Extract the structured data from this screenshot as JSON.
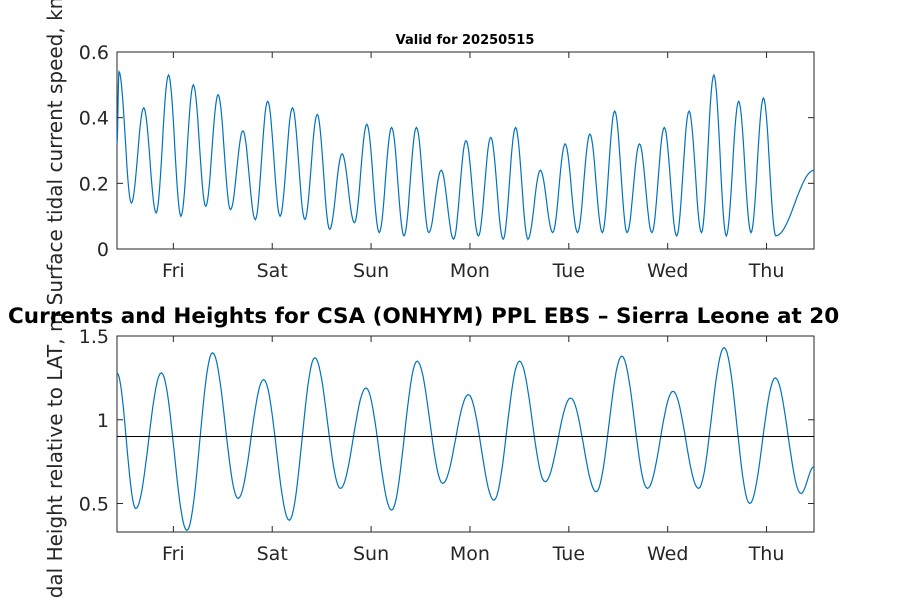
{
  "chart_data": [
    {
      "type": "line",
      "title": "Valid for 20250515",
      "ylabel": "Surface tidal current speed, kn",
      "xlabel": "",
      "ylim": [
        0,
        0.6
      ],
      "yticks": [
        0,
        0.2,
        0.4,
        0.6
      ],
      "ytick_labels": [
        "0",
        "0.2",
        "0.4",
        "0.6"
      ],
      "xlim": [
        0,
        7.05
      ],
      "xticks": [
        0.57,
        1.57,
        2.57,
        3.57,
        4.57,
        5.57,
        6.57
      ],
      "xtick_labels": [
        "Fri",
        "Sat",
        "Sun",
        "Mon",
        "Tue",
        "Wed",
        "Thu"
      ],
      "grid": false,
      "color": "#0072BD",
      "maxima": [
        0.54,
        0.43,
        0.53,
        0.5,
        0.47,
        0.36,
        0.45,
        0.43,
        0.41,
        0.29,
        0.38,
        0.37,
        0.37,
        0.24,
        0.33,
        0.34,
        0.37,
        0.24,
        0.32,
        0.35,
        0.42,
        0.32,
        0.37,
        0.42,
        0.53,
        0.45,
        0.46
      ],
      "minima": [
        0.14,
        0.11,
        0.1,
        0.13,
        0.12,
        0.09,
        0.1,
        0.09,
        0.06,
        0.08,
        0.05,
        0.04,
        0.05,
        0.03,
        0.04,
        0.03,
        0.03,
        0.05,
        0.05,
        0.05,
        0.05,
        0.05,
        0.04,
        0.05,
        0.04,
        0.05,
        0.04,
        0.05
      ]
    },
    {
      "type": "line",
      "title": "Currents and Heights for CSA (ONHYM) PPL EBS  – Sierra Leone at 20",
      "ylabel": "Tidal Height relative to LAT, m",
      "xlabel": "",
      "ylim": [
        0.33,
        1.5
      ],
      "yticks": [
        0.5,
        1,
        1.5
      ],
      "ytick_labels": [
        "0.5",
        "1",
        "1.5"
      ],
      "xlim": [
        0,
        7.05
      ],
      "xticks": [
        0.57,
        1.57,
        2.57,
        3.57,
        4.57,
        5.57,
        6.57
      ],
      "xtick_labels": [
        "Fri",
        "Sat",
        "Sun",
        "Mon",
        "Tue",
        "Wed",
        "Thu"
      ],
      "grid": false,
      "color": "#0072BD",
      "reference_line": 0.9,
      "start_value": 1.28,
      "highs": [
        1.28,
        1.4,
        1.24,
        1.37,
        1.19,
        1.35,
        1.15,
        1.35,
        1.13,
        1.38,
        1.17,
        1.43,
        1.25
      ],
      "lows": [
        0.47,
        0.34,
        0.53,
        0.4,
        0.59,
        0.46,
        0.62,
        0.52,
        0.63,
        0.57,
        0.59,
        0.59,
        0.5,
        0.56
      ],
      "end_value": 0.72
    }
  ]
}
